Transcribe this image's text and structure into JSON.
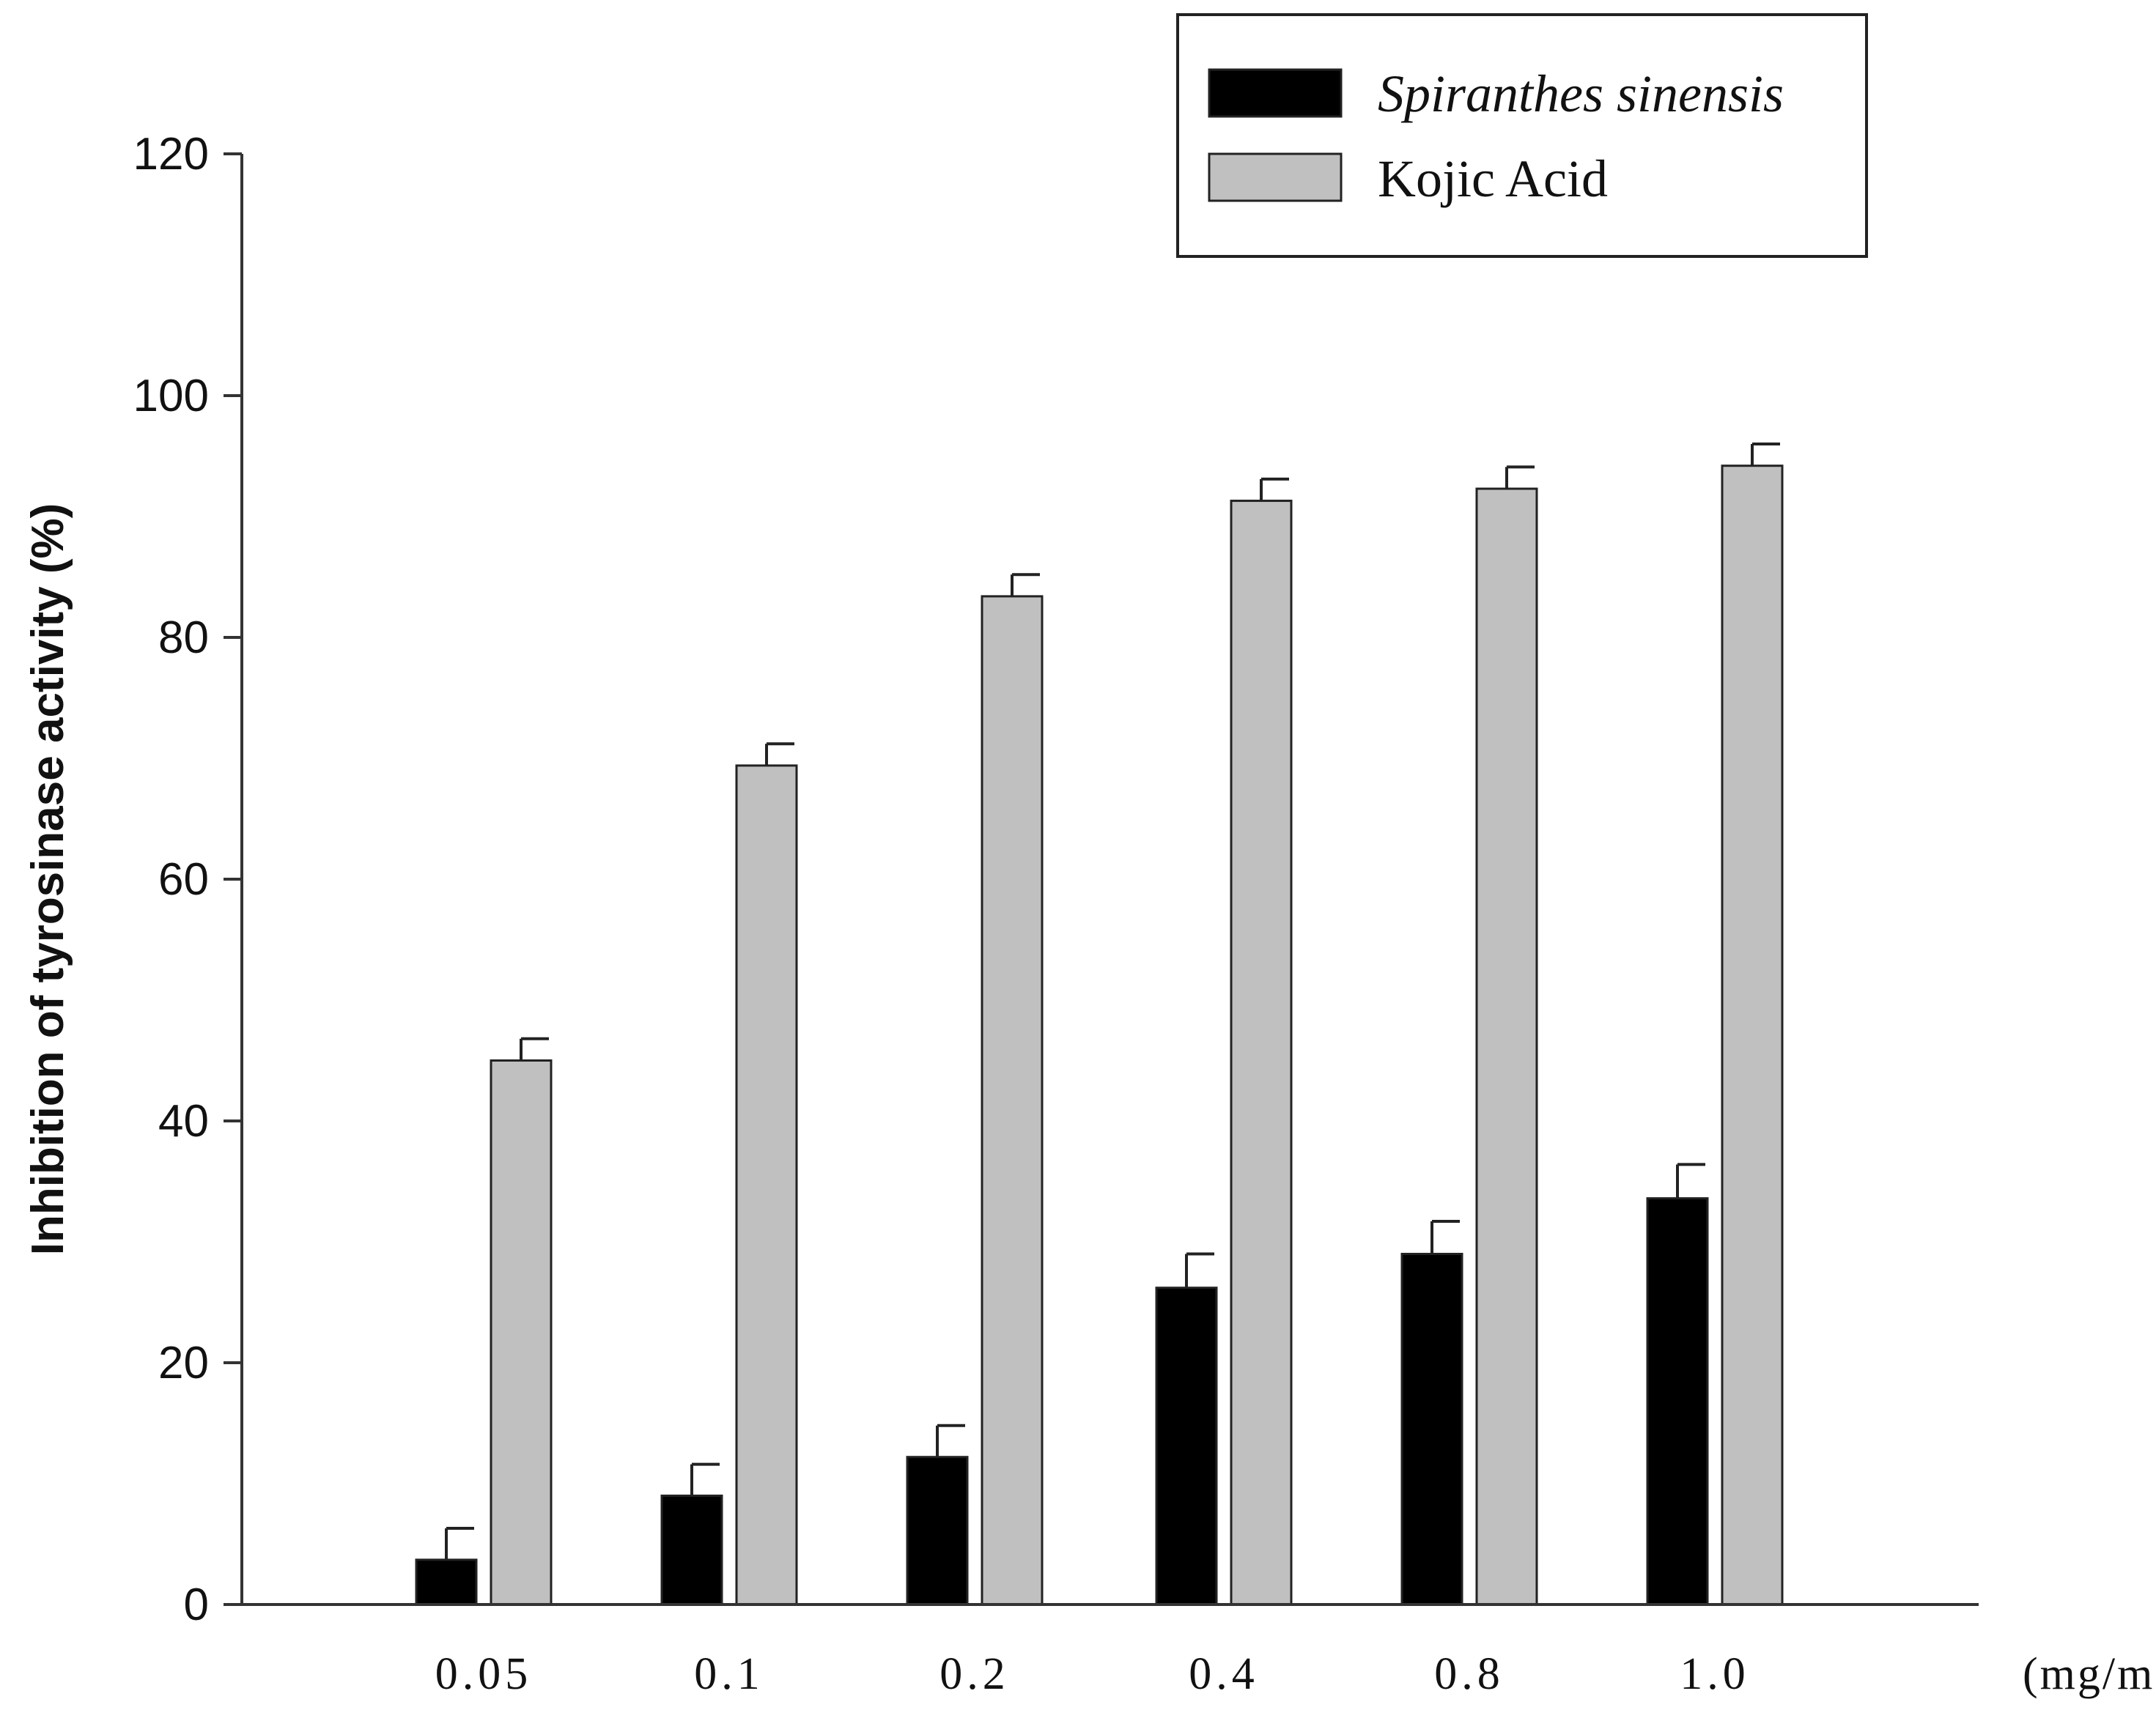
{
  "chart_data": {
    "type": "bar",
    "title": "",
    "ylabel": "Inhibition of tyrosinase activity (%)",
    "xlabel": "(mg/mL)",
    "ylim": [
      0,
      120
    ],
    "yticks": [
      "0",
      "20",
      "40",
      "60",
      "80",
      "100",
      "120"
    ],
    "categories": [
      "0.05",
      "0.1",
      "0.2",
      "0.4",
      "0.8",
      "1.0"
    ],
    "series": [
      {
        "name": "Spiranthes sinensis",
        "color": "#000000",
        "values": [
          3.7,
          9.0,
          12.2,
          26.2,
          29.0,
          33.6
        ],
        "errors": [
          2.6,
          2.6,
          2.6,
          2.8,
          2.7,
          2.8
        ]
      },
      {
        "name": "Kojic Acid",
        "color": "#c0c0c0",
        "values": [
          45.0,
          69.4,
          83.4,
          91.3,
          92.3,
          94.2
        ],
        "errors": [
          1.8,
          1.8,
          1.8,
          1.8,
          1.8,
          1.8
        ]
      }
    ],
    "legend_position": "top-right",
    "grid": false
  }
}
